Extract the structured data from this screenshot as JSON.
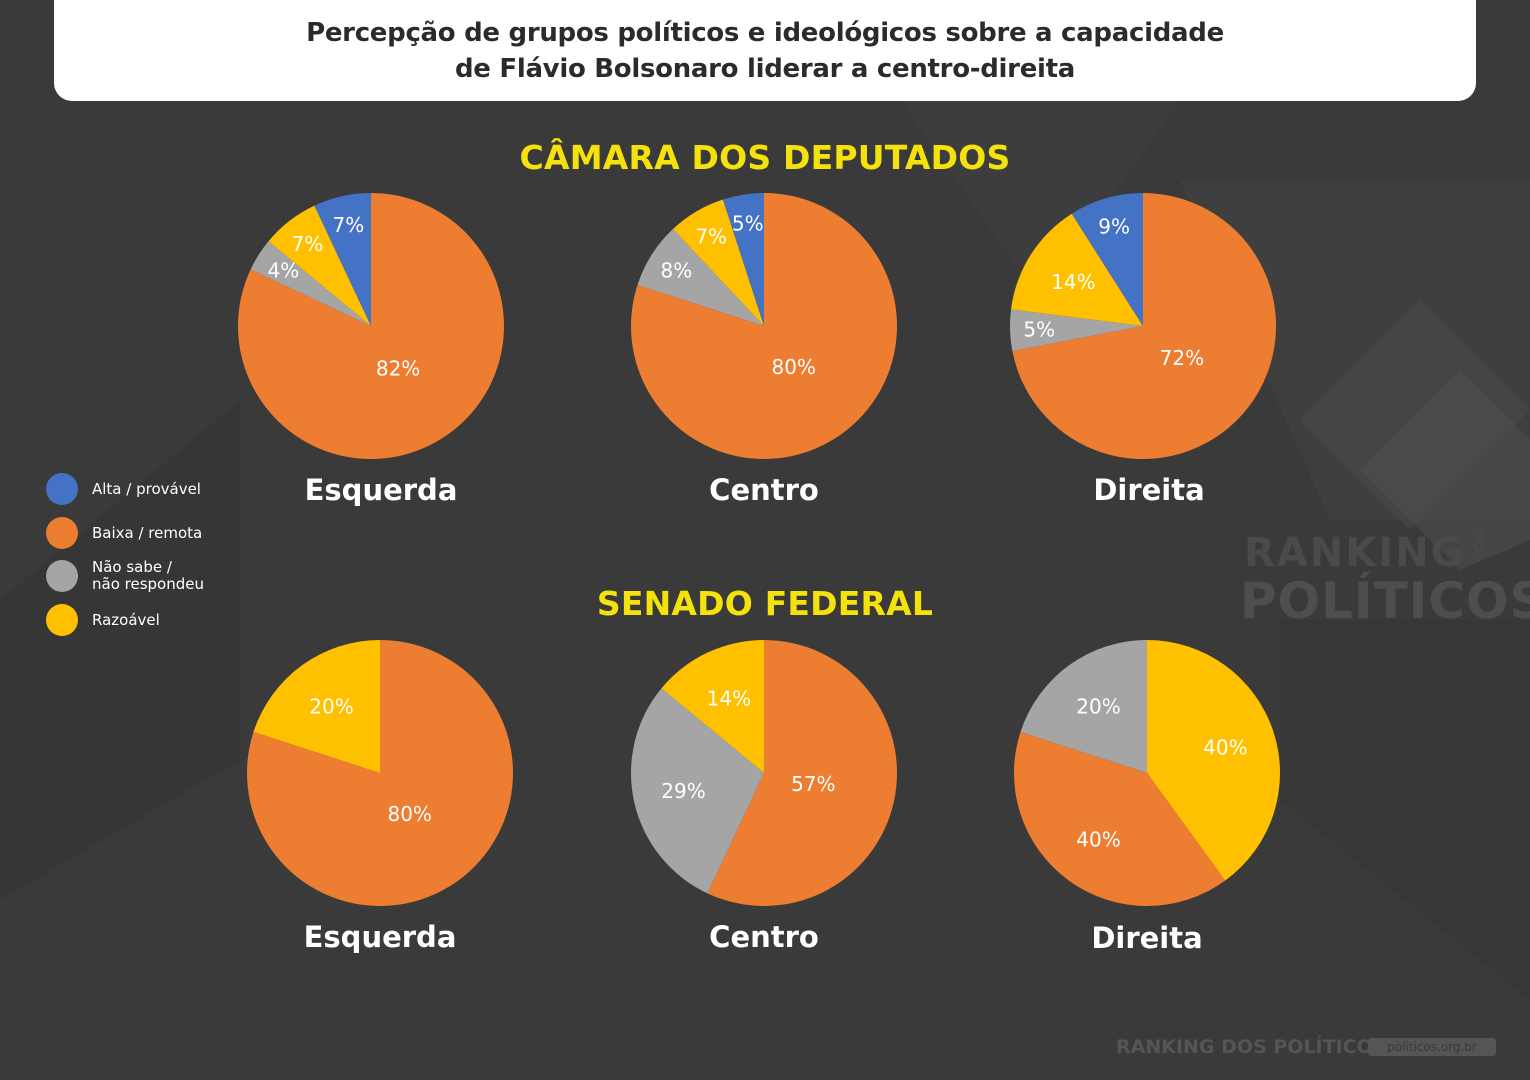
{
  "title": {
    "line1": "Percepção de grupos políticos e ideológicos sobre a capacidade",
    "line2": "de Flávio Bolsonaro liderar a centro-direita"
  },
  "sections": {
    "camara": "CÂMARA DOS DEPUTADOS",
    "senado": "SENADO FEDERAL"
  },
  "legend": [
    {
      "label": "Alta / provável",
      "color": "#4472c4"
    },
    {
      "label": "Baixa / remota",
      "color": "#ed7d31"
    },
    {
      "label": "Não sabe /\nnão respondeu",
      "color": "#a5a5a5"
    },
    {
      "label": "Razoável",
      "color": "#ffc000"
    }
  ],
  "colors": {
    "alta": "#4472c4",
    "baixa": "#ed7d31",
    "nao_sabe": "#a5a5a5",
    "razoavel": "#ffc000",
    "section_title": "#f5e20c",
    "background": "#3a3a3a"
  },
  "chart_data": [
    {
      "type": "pie",
      "section": "CÂMARA DOS DEPUTADOS",
      "title": "Esquerda",
      "slices": [
        {
          "label": "Alta / provável",
          "value": 7,
          "text": "7%"
        },
        {
          "label": "Baixa / remota",
          "value": 82,
          "text": "82%"
        },
        {
          "label": "Não sabe / não respondeu",
          "value": 4,
          "text": "4%"
        },
        {
          "label": "Razoável",
          "value": 7,
          "text": "7%"
        }
      ]
    },
    {
      "type": "pie",
      "section": "CÂMARA DOS DEPUTADOS",
      "title": "Centro",
      "slices": [
        {
          "label": "Alta / provável",
          "value": 5,
          "text": "5%"
        },
        {
          "label": "Baixa / remota",
          "value": 80,
          "text": "80%"
        },
        {
          "label": "Não sabe / não respondeu",
          "value": 8,
          "text": "8%"
        },
        {
          "label": "Razoável",
          "value": 7,
          "text": "7%"
        }
      ]
    },
    {
      "type": "pie",
      "section": "CÂMARA DOS DEPUTADOS",
      "title": "Direita",
      "slices": [
        {
          "label": "Alta / provável",
          "value": 9,
          "text": "9%"
        },
        {
          "label": "Baixa / remota",
          "value": 72,
          "text": "72%"
        },
        {
          "label": "Não sabe / não respondeu",
          "value": 5,
          "text": "5%"
        },
        {
          "label": "Razoável",
          "value": 14,
          "text": "14%"
        }
      ]
    },
    {
      "type": "pie",
      "section": "SENADO FEDERAL",
      "title": "Esquerda",
      "slices": [
        {
          "label": "Baixa / remota",
          "value": 80,
          "text": "80%"
        },
        {
          "label": "Razoável",
          "value": 20,
          "text": "20%"
        }
      ]
    },
    {
      "type": "pie",
      "section": "SENADO FEDERAL",
      "title": "Centro",
      "slices": [
        {
          "label": "Baixa / remota",
          "value": 57,
          "text": "57%"
        },
        {
          "label": "Não sabe / não respondeu",
          "value": 29,
          "text": "29%"
        },
        {
          "label": "Razoável",
          "value": 14,
          "text": "14%"
        }
      ]
    },
    {
      "type": "pie",
      "section": "SENADO FEDERAL",
      "title": "Direita",
      "slices": [
        {
          "label": "Razoável",
          "value": 40,
          "text": "40%"
        },
        {
          "label": "Baixa / remota",
          "value": 40,
          "text": "40%"
        },
        {
          "label": "Não sabe / não respondeu",
          "value": 20,
          "text": "20%"
        }
      ]
    }
  ],
  "watermark": {
    "ranking": "RANKING",
    "dos": "DOS",
    "politicos": "POLÍTICOS",
    "footer_logo": "RANKING DOS POLÍTICOS",
    "site": "politicos.org.br"
  }
}
